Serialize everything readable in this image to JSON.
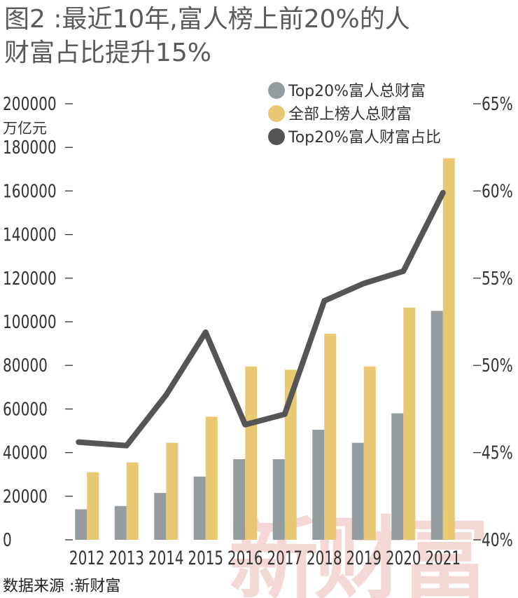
{
  "title": {
    "line1": "图2 :最近10年,富人榜上前20%的人",
    "line2": "财富占比提升15%"
  },
  "source": "数据来源 :新财富",
  "watermark": "新财富",
  "chart_data": {
    "type": "bar",
    "categories": [
      "2012",
      "2013",
      "2014",
      "2015",
      "2016",
      "2017",
      "2018",
      "2019",
      "2020",
      "2021"
    ],
    "y_left": {
      "unit": "万亿元",
      "min": 0,
      "max": 200000,
      "ticks": [
        "0",
        "20000",
        "40000",
        "60000",
        "80000",
        "100000",
        "120000",
        "140000",
        "160000",
        "180000",
        "200000"
      ]
    },
    "y_right": {
      "min": 40,
      "max": 65,
      "ticks": [
        "40%",
        "45%",
        "50%",
        "55%",
        "60%",
        "65%"
      ]
    },
    "series": [
      {
        "name": "Top20%富人总财富",
        "type": "bar",
        "axis": "left",
        "color": "#949ca0",
        "values": [
          14000,
          15500,
          21500,
          29000,
          37000,
          37000,
          50500,
          44500,
          58000,
          105000
        ]
      },
      {
        "name": "全部上榜人总财富",
        "type": "bar",
        "axis": "left",
        "color": "#e8c872",
        "values": [
          31000,
          35500,
          44500,
          56500,
          79500,
          78000,
          94500,
          79500,
          106500,
          175000
        ]
      },
      {
        "name": "Top20%富人财富占比",
        "type": "line",
        "axis": "right",
        "color": "#555555",
        "values": [
          45.6,
          45.4,
          48.3,
          51.9,
          46.6,
          47.2,
          53.7,
          54.7,
          55.4,
          59.9
        ]
      }
    ],
    "legend_position": "top-center",
    "grid": false
  }
}
